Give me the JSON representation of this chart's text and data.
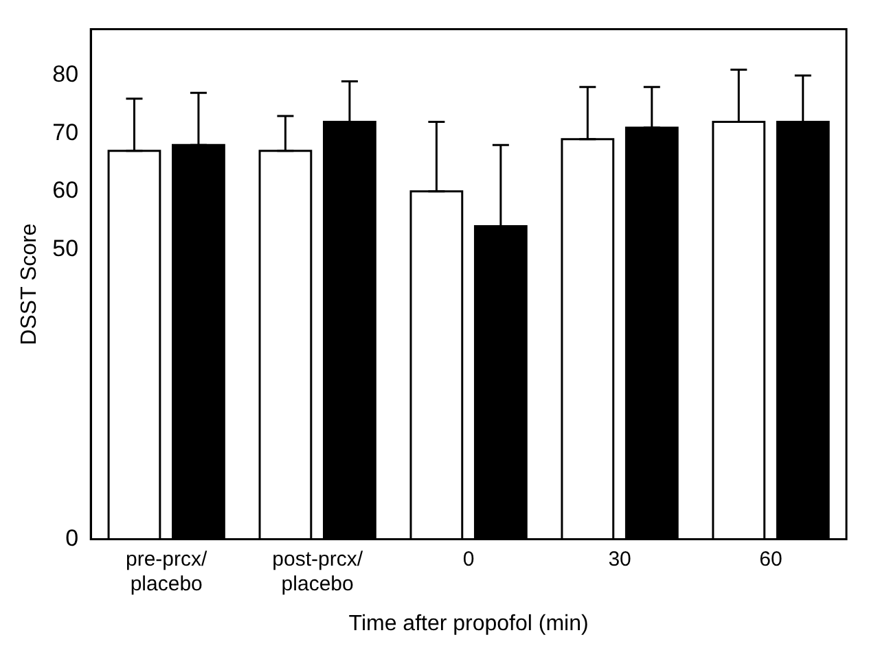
{
  "chart_data": {
    "type": "bar",
    "xlabel": "Time after propofol (min)",
    "ylabel": "DSST Score",
    "categories": [
      "pre-prcx/\nplacebo",
      "post-prcx/\nplacebo",
      "0",
      "30",
      "60"
    ],
    "series": [
      {
        "color": "#ffffff",
        "values": [
          67,
          67,
          60,
          69,
          72
        ],
        "errors": [
          [
            67,
            76
          ],
          [
            67,
            73
          ],
          [
            60,
            72
          ],
          [
            69,
            78
          ],
          [
            72,
            81
          ]
        ]
      },
      {
        "color": "#000000",
        "values": [
          68,
          72,
          54,
          71,
          72
        ],
        "errors": [
          [
            68,
            77
          ],
          [
            72,
            79
          ],
          [
            54,
            68
          ],
          [
            71,
            78
          ],
          [
            72,
            80
          ]
        ]
      }
    ],
    "ylim": [
      0,
      88
    ],
    "yticks": [
      0,
      50,
      60,
      70,
      80
    ],
    "grid": false,
    "legend": false
  }
}
